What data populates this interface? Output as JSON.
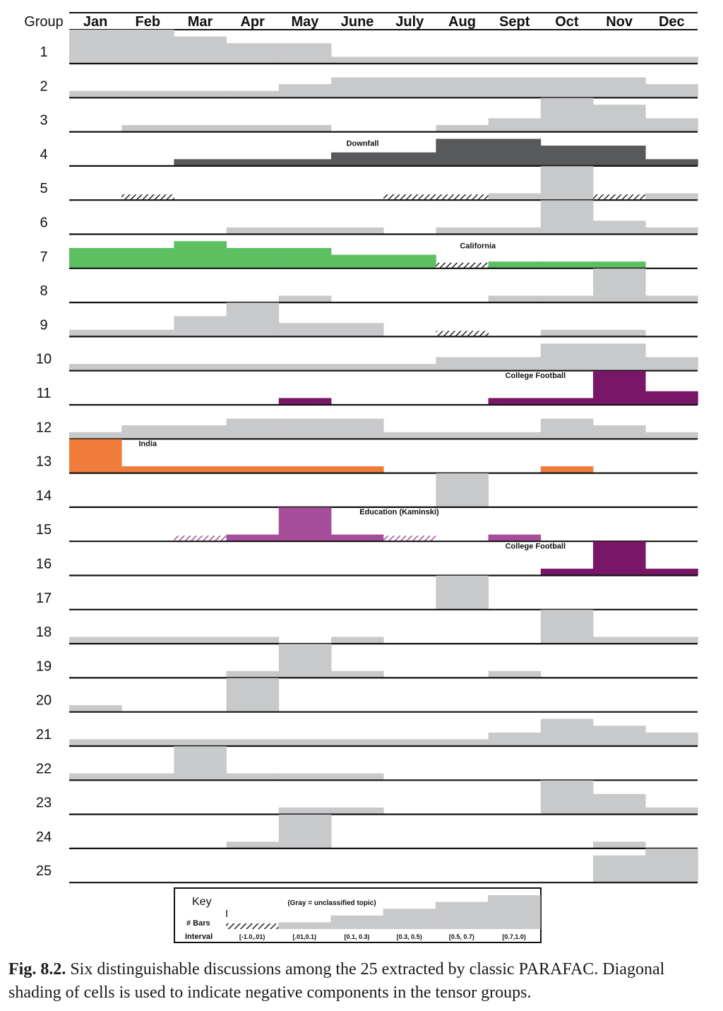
{
  "chart_data": {
    "type": "heatmap",
    "group_header": "Group",
    "months": [
      "Jan",
      "Feb",
      "Mar",
      "Apr",
      "May",
      "June",
      "July",
      "Aug",
      "Sept",
      "Oct",
      "Nov",
      "Dec"
    ],
    "groups": [
      "1",
      "2",
      "3",
      "4",
      "5",
      "6",
      "7",
      "8",
      "9",
      "10",
      "11",
      "12",
      "13",
      "14",
      "15",
      "16",
      "17",
      "18",
      "19",
      "20",
      "21",
      "22",
      "23",
      "24",
      "25"
    ],
    "bar_levels_note": "Each cell value is a number of bars per the key: -1 = negative interval (hatched), 0 = none, 1..5 = increasing magnitude.",
    "rows": [
      {
        "group": "1",
        "values": [
          5,
          5,
          4,
          3,
          3,
          1,
          1,
          1,
          1,
          1,
          1,
          1
        ]
      },
      {
        "group": "2",
        "values": [
          1,
          1,
          1,
          1,
          2,
          3,
          3,
          3,
          3,
          3,
          3,
          2
        ]
      },
      {
        "group": "3",
        "values": [
          0,
          1,
          1,
          1,
          1,
          0,
          0,
          1,
          2,
          5,
          4,
          2
        ]
      },
      {
        "group": "4",
        "values": [
          0,
          0,
          1,
          1,
          1,
          2,
          2,
          4,
          4,
          3,
          3,
          1
        ],
        "color": "#58595b",
        "label": "Downfall"
      },
      {
        "group": "5",
        "values": [
          0,
          -1,
          0,
          0,
          0,
          0,
          -1,
          -1,
          1,
          5,
          -1,
          1
        ]
      },
      {
        "group": "6",
        "values": [
          0,
          0,
          0,
          1,
          1,
          1,
          0,
          1,
          1,
          5,
          2,
          1
        ]
      },
      {
        "group": "7",
        "values": [
          3,
          3,
          4,
          3,
          3,
          2,
          2,
          -1,
          1,
          1,
          1,
          0
        ],
        "color": "#5cbf60",
        "label": "California"
      },
      {
        "group": "8",
        "values": [
          0,
          0,
          0,
          0,
          1,
          0,
          0,
          0,
          1,
          1,
          5,
          1
        ]
      },
      {
        "group": "9",
        "values": [
          1,
          1,
          3,
          5,
          2,
          2,
          0,
          -1,
          0,
          1,
          1,
          0
        ]
      },
      {
        "group": "10",
        "values": [
          1,
          1,
          1,
          1,
          1,
          1,
          1,
          2,
          2,
          4,
          4,
          2
        ]
      },
      {
        "group": "11",
        "values": [
          0,
          0,
          0,
          0,
          1,
          0,
          0,
          0,
          1,
          1,
          5,
          2
        ],
        "color": "#7a1668",
        "label": "College Football"
      },
      {
        "group": "12",
        "values": [
          1,
          2,
          2,
          3,
          3,
          3,
          1,
          1,
          1,
          3,
          2,
          1
        ]
      },
      {
        "group": "13",
        "values": [
          5,
          1,
          1,
          1,
          1,
          1,
          0,
          0,
          0,
          1,
          0,
          0
        ],
        "color": "#f07c3c",
        "label": "India"
      },
      {
        "group": "14",
        "values": [
          0,
          0,
          0,
          0,
          0,
          0,
          0,
          5,
          0,
          0,
          0,
          0
        ]
      },
      {
        "group": "15",
        "values": [
          0,
          0,
          -1,
          1,
          5,
          1,
          -1,
          0,
          1,
          0,
          0,
          0
        ],
        "color": "#a64d9c",
        "label": "Education (Kaminski)"
      },
      {
        "group": "16",
        "values": [
          0,
          0,
          0,
          0,
          0,
          0,
          0,
          0,
          0,
          1,
          5,
          1
        ],
        "color": "#7a1668",
        "label": "College Football"
      },
      {
        "group": "17",
        "values": [
          0,
          0,
          0,
          0,
          0,
          0,
          0,
          5,
          0,
          0,
          0,
          0
        ]
      },
      {
        "group": "18",
        "values": [
          1,
          1,
          1,
          1,
          0,
          1,
          0,
          0,
          0,
          5,
          1,
          1
        ]
      },
      {
        "group": "19",
        "values": [
          0,
          0,
          0,
          1,
          5,
          1,
          0,
          0,
          1,
          0,
          0,
          0
        ]
      },
      {
        "group": "20",
        "values": [
          1,
          0,
          0,
          5,
          0,
          0,
          0,
          0,
          0,
          0,
          0,
          0
        ]
      },
      {
        "group": "21",
        "values": [
          1,
          1,
          1,
          1,
          1,
          1,
          1,
          1,
          2,
          4,
          3,
          2
        ]
      },
      {
        "group": "22",
        "values": [
          1,
          1,
          5,
          1,
          1,
          1,
          0,
          0,
          0,
          0,
          0,
          0
        ]
      },
      {
        "group": "23",
        "values": [
          0,
          0,
          0,
          0,
          1,
          1,
          0,
          0,
          0,
          5,
          3,
          1
        ]
      },
      {
        "group": "24",
        "values": [
          0,
          0,
          0,
          1,
          5,
          0,
          0,
          0,
          0,
          0,
          1,
          0
        ]
      },
      {
        "group": "25",
        "values": [
          0,
          0,
          0,
          0,
          0,
          0,
          0,
          0,
          0,
          0,
          4,
          5
        ]
      }
    ],
    "colors": {
      "gray": "#c8c9cb",
      "rule": "#111111",
      "hatch": "#222222",
      "hatch_pink": "#a64d9c"
    },
    "key": {
      "title": "Key",
      "note": "(Gray = unclassified topic)",
      "bars_label": "# Bars",
      "interval_label": "Interval",
      "bar_count_marker": "I",
      "levels": [
        -1,
        1,
        2,
        3,
        4,
        5
      ],
      "intervals": [
        "[-1.0,.01)",
        "[.01,0.1)",
        "[0.1, 0.3)",
        "[0.3, 0.5)",
        "[0.5, 0.7)",
        "[0.7,1.0)"
      ]
    }
  },
  "caption": {
    "label": "Fig. 8.2.",
    "text": " Six distinguishable discussions among the 25 extracted by classic PARAFAC. Diagonal shading of cells is used to indicate negative components in the tensor groups."
  }
}
